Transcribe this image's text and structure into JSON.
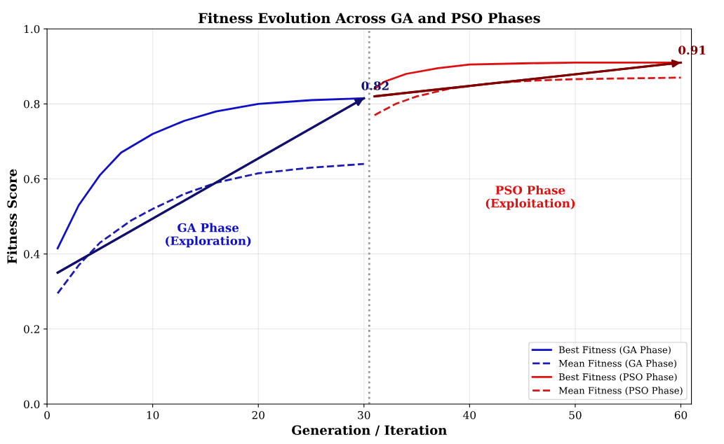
{
  "chart_data": {
    "type": "line",
    "title": "Fitness Evolution Across GA and PSO Phases",
    "xlabel": "Generation / Iteration",
    "ylabel": "Fitness Score",
    "xlim": [
      0,
      61
    ],
    "ylim": [
      0,
      1.0
    ],
    "xticks": [
      0,
      10,
      20,
      30,
      40,
      50,
      60
    ],
    "yticks": [
      {
        "value": 0,
        "label": "0.0"
      },
      0.2,
      0.4,
      0.6,
      0.8,
      {
        "value": 1,
        "label": "1.0"
      }
    ],
    "grid": true,
    "legend": "bottom right",
    "series": [
      {
        "name": "Best Fitness (GA Phase)",
        "color": "#1010c8",
        "line_style": "solid",
        "x": [
          1,
          3,
          5,
          7,
          10,
          13,
          16,
          20,
          25,
          30
        ],
        "values": [
          0.415,
          0.53,
          0.61,
          0.67,
          0.72,
          0.755,
          0.78,
          0.8,
          0.81,
          0.815
        ]
      },
      {
        "name": "Mean Fitness (GA Phase)",
        "color": "#1c1cb4",
        "line_style": "dashed",
        "x": [
          1,
          3,
          5,
          8,
          10,
          13,
          16,
          20,
          25,
          30
        ],
        "values": [
          0.295,
          0.37,
          0.43,
          0.49,
          0.52,
          0.56,
          0.59,
          0.615,
          0.63,
          0.64
        ]
      },
      {
        "name": "Best Fitness (PSO Phase)",
        "color": "#e01010",
        "line_style": "solid",
        "x": [
          31,
          32,
          34,
          37,
          40,
          45,
          50,
          60
        ],
        "values": [
          0.84,
          0.86,
          0.88,
          0.895,
          0.905,
          0.908,
          0.91,
          0.91
        ]
      },
      {
        "name": "Mean Fitness (PSO Phase)",
        "color": "#d81818",
        "line_style": "dashed",
        "x": [
          31,
          33,
          35,
          38,
          42,
          46,
          50,
          60
        ],
        "values": [
          0.77,
          0.8,
          0.82,
          0.84,
          0.855,
          0.862,
          0.866,
          0.87
        ]
      },
      {
        "type": "line",
        "color": "#101070",
        "x": [
          1,
          30
        ],
        "values": [
          0.35,
          0.815
        ]
      },
      {
        "type": "line",
        "color": "#800000",
        "x": [
          31,
          60
        ],
        "values": [
          0.82,
          0.91
        ]
      }
    ],
    "ref_lines": [
      {
        "axis": "x",
        "value": 30.5,
        "color": "#999999",
        "line_style": "dotted"
      }
    ],
    "annotations": [
      {
        "text": "0.82",
        "x": 30,
        "y": 0.815
      },
      {
        "text": "0.91",
        "x": 60,
        "y": 0.91
      },
      "GA Phase\n(Exploration)",
      "PSO Phase\n(Exploitation)"
    ]
  }
}
